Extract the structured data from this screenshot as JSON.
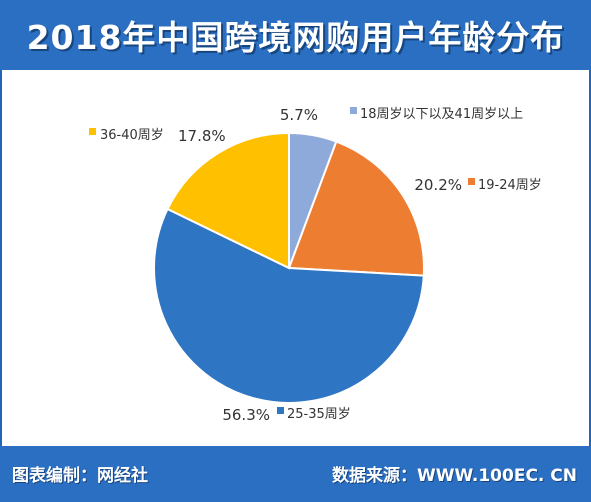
{
  "header": {
    "title": "2018年中国跨境网购用户年龄分布"
  },
  "footer": {
    "left": "图表编制：网经社",
    "right": "数据来源：WWW.100EC. CN"
  },
  "chart_data": {
    "type": "pie",
    "title": "2018年中国跨境网购用户年龄分布",
    "slices": [
      {
        "label": "18周岁以下以及41周岁以上",
        "value": 5.7,
        "pct_text": "5.7%",
        "color": "#8eaadb"
      },
      {
        "label": "19-24周岁",
        "value": 20.2,
        "pct_text": "20.2%",
        "color": "#ed7d31"
      },
      {
        "label": "25-35周岁",
        "value": 56.3,
        "pct_text": "56.3%",
        "color": "#2e75c4"
      },
      {
        "label": "36-40周岁",
        "value": 17.8,
        "pct_text": "17.8%",
        "color": "#ffc000"
      }
    ]
  }
}
